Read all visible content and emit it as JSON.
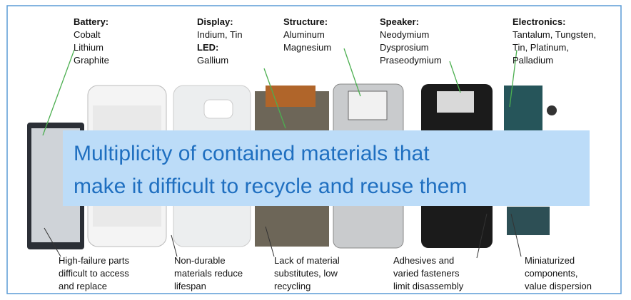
{
  "top_labels": [
    {
      "heading": "Battery:",
      "lines": [
        "Cobalt",
        "Lithium",
        "Graphite"
      ]
    },
    {
      "heading": "Display:",
      "lines": [
        "Indium, Tin"
      ],
      "subheading": "LED:",
      "sublines": [
        "Gallium"
      ]
    },
    {
      "heading": "Structure:",
      "lines": [
        "Aluminum",
        "Magnesium"
      ]
    },
    {
      "heading": "Speaker:",
      "lines": [
        "Neodymium",
        "Dysprosium",
        "Praseodymium"
      ]
    },
    {
      "heading": "Electronics:",
      "lines": [
        "Tantalum, Tungsten,",
        "Tin, Platinum,",
        "Palladium"
      ]
    }
  ],
  "bottom_labels": [
    {
      "lines": [
        "High-failure parts",
        "difficult to access",
        "and replace"
      ]
    },
    {
      "lines": [
        "Non-durable",
        "materials reduce",
        "lifespan"
      ]
    },
    {
      "lines": [
        "Lack of material",
        "substitutes, low",
        "recycling"
      ]
    },
    {
      "lines": [
        "Adhesives and",
        "varied fasteners",
        "limit disassembly"
      ]
    },
    {
      "lines": [
        "Miniaturized",
        "components,",
        "value dispersion"
      ]
    }
  ],
  "overlay": {
    "lines": [
      "Multiplicity of contained materials that",
      "make it difficult to recycle and reuse them"
    ]
  }
}
